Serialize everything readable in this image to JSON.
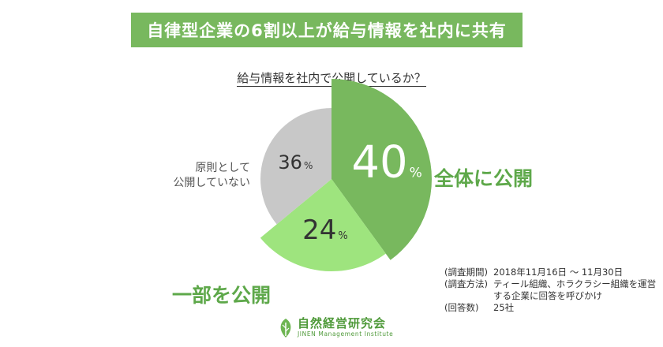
{
  "header": {
    "title": "自律型企業の6割以上が給与情報を社内に共有"
  },
  "chart_data": {
    "type": "pie",
    "title": "給与情報を社内で公開しているか？",
    "slices": [
      {
        "label": "全体に公開",
        "value": 40,
        "value_text": "40",
        "unit": "%",
        "color": "#78b85e",
        "label_color": "#ffffff"
      },
      {
        "label": "一部を公開",
        "value": 24,
        "value_text": "24",
        "unit": "%",
        "color": "#9ee47e",
        "label_color": "#333333"
      },
      {
        "label": "原則として公開していない",
        "value": 36,
        "value_text": "36",
        "unit": "%",
        "color": "#c8c8c8",
        "label_color": "#333333"
      }
    ],
    "start_angle_deg": 0,
    "direction": "clockwise"
  },
  "labels": {
    "all_public": "全体に公開",
    "partial_public": "一部を公開",
    "not_public_line1": "原則として",
    "not_public_line2": "公開していない"
  },
  "survey": {
    "period_key": "(調査期間)",
    "period_value": "2018年11月16日 〜 11月30日",
    "method_key": "(調査方法)",
    "method_value": "ティール組織、ホラクラシー組織を運営する企業に回答を呼びかけ",
    "respondents_key": "(回答数)",
    "respondents_value": "25社"
  },
  "logo": {
    "name": "自然経営研究会",
    "subtitle": "JINEN Management Institute",
    "color": "#4f9a3a"
  }
}
